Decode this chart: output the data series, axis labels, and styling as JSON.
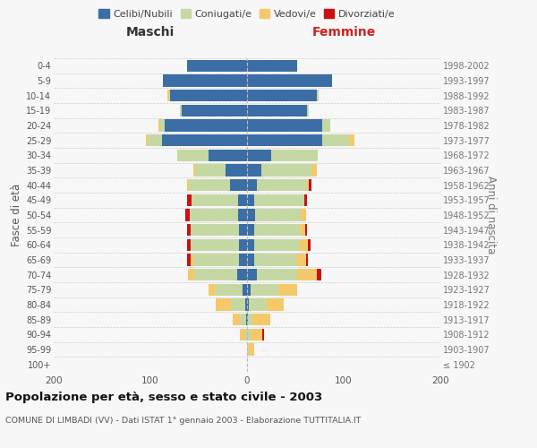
{
  "age_groups": [
    "100+",
    "95-99",
    "90-94",
    "85-89",
    "80-84",
    "75-79",
    "70-74",
    "65-69",
    "60-64",
    "55-59",
    "50-54",
    "45-49",
    "40-44",
    "35-39",
    "30-34",
    "25-29",
    "20-24",
    "15-19",
    "10-14",
    "5-9",
    "0-4"
  ],
  "birth_years": [
    "≤ 1902",
    "1903-1907",
    "1908-1912",
    "1913-1917",
    "1918-1922",
    "1923-1927",
    "1928-1932",
    "1933-1937",
    "1938-1942",
    "1943-1947",
    "1948-1952",
    "1953-1957",
    "1958-1962",
    "1963-1967",
    "1968-1972",
    "1973-1977",
    "1978-1982",
    "1983-1987",
    "1988-1992",
    "1993-1997",
    "1998-2002"
  ],
  "maschi": {
    "celibi": [
      0,
      0,
      0,
      1,
      2,
      5,
      10,
      8,
      8,
      8,
      9,
      9,
      18,
      22,
      40,
      88,
      85,
      68,
      80,
      87,
      62
    ],
    "coniugati": [
      0,
      0,
      2,
      6,
      15,
      28,
      45,
      48,
      50,
      50,
      50,
      48,
      42,
      32,
      32,
      15,
      5,
      1,
      1,
      0,
      0
    ],
    "vedovi": [
      0,
      0,
      5,
      8,
      15,
      7,
      6,
      2,
      0,
      0,
      0,
      0,
      2,
      2,
      0,
      2,
      2,
      0,
      1,
      0,
      0
    ],
    "divorziati": [
      0,
      0,
      0,
      0,
      0,
      0,
      0,
      4,
      4,
      4,
      5,
      5,
      0,
      0,
      0,
      0,
      0,
      0,
      0,
      0,
      0
    ]
  },
  "femmine": {
    "nubili": [
      0,
      0,
      0,
      1,
      2,
      4,
      10,
      7,
      7,
      7,
      8,
      7,
      10,
      15,
      25,
      78,
      78,
      62,
      72,
      88,
      52
    ],
    "coniugate": [
      0,
      2,
      4,
      5,
      18,
      28,
      42,
      44,
      48,
      48,
      48,
      52,
      52,
      52,
      48,
      28,
      8,
      2,
      2,
      0,
      0
    ],
    "vedove": [
      0,
      5,
      12,
      18,
      18,
      20,
      20,
      10,
      8,
      5,
      5,
      0,
      2,
      5,
      0,
      5,
      0,
      0,
      0,
      0,
      0
    ],
    "divorziate": [
      0,
      0,
      2,
      0,
      0,
      0,
      5,
      2,
      3,
      2,
      0,
      3,
      3,
      0,
      0,
      0,
      0,
      0,
      0,
      0,
      0
    ]
  },
  "colors": {
    "celibi": "#3a6ea5",
    "coniugati": "#c5d8a4",
    "vedovi": "#f5c96a",
    "divorziati": "#cc1111"
  },
  "xlim": 200,
  "title": "Popolazione per età, sesso e stato civile - 2003",
  "subtitle": "COMUNE DI LIMBADI (VV) - Dati ISTAT 1° gennaio 2003 - Elaborazione TUTTITALIA.IT",
  "ylabel": "Fasce di età",
  "ylabel_right": "Anni di nascita",
  "xlabel_left": "Maschi",
  "xlabel_right": "Femmine",
  "bg_color": "#f7f7f7",
  "grid_color": "#cccccc"
}
